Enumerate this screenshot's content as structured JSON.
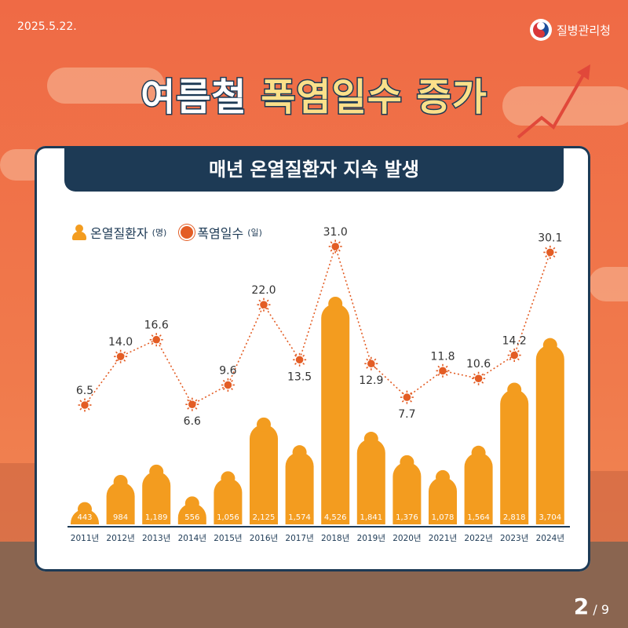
{
  "header": {
    "date": "2025.5.22.",
    "org_name": "질병관리청"
  },
  "title": {
    "part1": "여름철",
    "part2": "폭염일수 증가"
  },
  "card": {
    "banner": "매년 온열질환자 지속 발생"
  },
  "legend": [
    {
      "label": "온열질환자",
      "unit": "(명)",
      "icon": "person-icon"
    },
    {
      "label": "폭염일수",
      "unit": "(일)",
      "icon": "sun-icon"
    }
  ],
  "pagination": {
    "current": "2",
    "total": "/ 9"
  },
  "colors": {
    "bar": "#f39c1f",
    "line": "#e35d25",
    "navy": "#1d3a55",
    "bg": "#ef6a45"
  },
  "chart_data": {
    "type": "bar",
    "categories": [
      "2011년",
      "2012년",
      "2013년",
      "2014년",
      "2015년",
      "2016년",
      "2017년",
      "2018년",
      "2019년",
      "2020년",
      "2021년",
      "2022년",
      "2023년",
      "2024년"
    ],
    "series": [
      {
        "name": "온열질환자(명)",
        "type": "bar",
        "values": [
          443,
          984,
          1189,
          556,
          1056,
          2125,
          1574,
          4526,
          1841,
          1376,
          1078,
          1564,
          2818,
          3704
        ],
        "labels": [
          "443",
          "984",
          "1,189",
          "556",
          "1,056",
          "2,125",
          "1,574",
          "4,526",
          "1,841",
          "1,376",
          "1,078",
          "1,564",
          "2,818",
          "3,704"
        ]
      },
      {
        "name": "폭염일수(일)",
        "type": "line",
        "values": [
          6.5,
          14.0,
          16.6,
          6.6,
          9.6,
          22.0,
          13.5,
          31.0,
          12.9,
          7.7,
          11.8,
          10.6,
          14.2,
          30.1
        ],
        "labels": [
          "6.5",
          "14.0",
          "16.6",
          "6.6",
          "9.6",
          "22.0",
          "13.5",
          "31.0",
          "12.9",
          "7.7",
          "11.8",
          "10.6",
          "14.2",
          "30.1"
        ]
      }
    ]
  }
}
